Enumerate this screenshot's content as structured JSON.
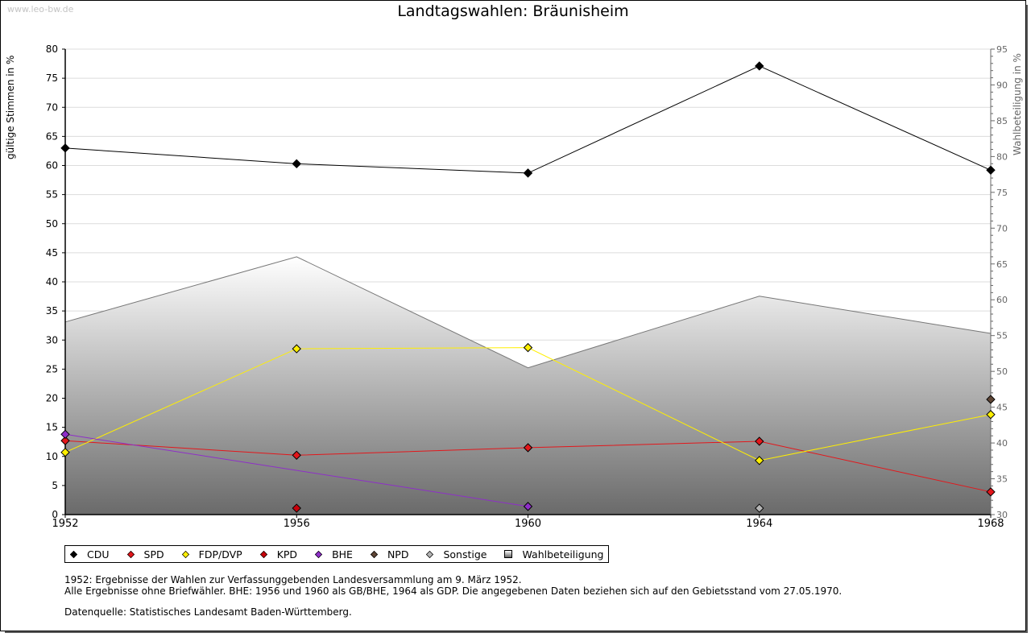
{
  "watermark": "www.leo-bw.de",
  "chart_data": {
    "type": "line",
    "title": "Landtagswahlen: Bräunisheim",
    "xlabel": "",
    "ylabel": "gültige Stimmen in %",
    "y2label": "Wahlbeteiligung in %",
    "categories": [
      "1952",
      "1956",
      "1960",
      "1964",
      "1968"
    ],
    "ylim": [
      0,
      80
    ],
    "y2lim": [
      30,
      95
    ],
    "yticks": [
      "0",
      "5",
      "10",
      "15",
      "20",
      "25",
      "30",
      "35",
      "40",
      "45",
      "50",
      "55",
      "60",
      "65",
      "70",
      "75",
      "80"
    ],
    "y2ticks": [
      "30",
      "35",
      "40",
      "45",
      "50",
      "55",
      "60",
      "65",
      "70",
      "75",
      "80",
      "85",
      "90",
      "95"
    ],
    "grid": true,
    "legend_position": "bottom-left",
    "series": [
      {
        "name": "CDU",
        "color": "#000000",
        "axis": "left",
        "values": [
          63.0,
          60.3,
          58.7,
          77.1,
          59.2
        ]
      },
      {
        "name": "SPD",
        "color": "#e3171b",
        "axis": "left",
        "values": [
          12.7,
          10.2,
          11.5,
          12.6,
          3.9
        ]
      },
      {
        "name": "FDP/DVP",
        "color": "#ffef00",
        "axis": "left",
        "values": [
          10.7,
          28.5,
          28.7,
          9.3,
          17.2
        ]
      },
      {
        "name": "KPD",
        "color": "#c8000a",
        "axis": "left",
        "values": [
          null,
          1.1,
          null,
          null,
          null
        ]
      },
      {
        "name": "BHE",
        "color": "#8e2fc8",
        "axis": "left",
        "values": [
          13.8,
          null,
          1.4,
          null,
          null
        ]
      },
      {
        "name": "NPD",
        "color": "#5e4535",
        "axis": "left",
        "values": [
          null,
          null,
          null,
          null,
          19.8
        ]
      },
      {
        "name": "Sonstige",
        "color": "#b4b4b4",
        "axis": "left",
        "values": [
          null,
          null,
          null,
          1.1,
          null
        ]
      },
      {
        "name": "Wahlbeteiligung",
        "color": "#888888",
        "axis": "right",
        "type": "area",
        "values": [
          56.9,
          66.0,
          50.5,
          60.5,
          55.3
        ]
      }
    ]
  },
  "notes": [
    "1952: Ergebnisse der Wahlen zur Verfassunggebenden Landesversammlung am 9. März 1952.",
    "Alle Ergebnisse ohne Briefwähler. BHE: 1956 und 1960 als GB/BHE, 1964 als GDP. Die angegebenen Daten beziehen sich auf den Gebietsstand vom 27.05.1970.",
    "",
    "Datenquelle: Statistisches Landesamt Baden-Württemberg."
  ]
}
